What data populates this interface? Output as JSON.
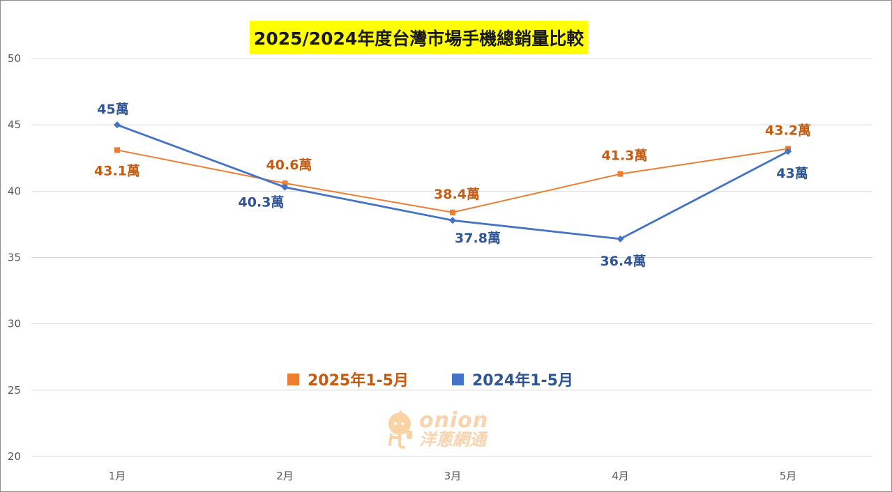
{
  "chart_data": {
    "type": "line",
    "title": "2025/2024年度台灣市場手機總銷量比較",
    "categories": [
      "1月",
      "2月",
      "3月",
      "4月",
      "5月"
    ],
    "y_ticks": [
      "20",
      "25",
      "30",
      "35",
      "40",
      "45",
      "50"
    ],
    "ylim": [
      20,
      50
    ],
    "grid": true,
    "legend_position": "middle-center",
    "series": [
      {
        "name": "2025年1-5月",
        "color": "#ed7d31",
        "label_color": "#c55a11",
        "marker": "square",
        "values": [
          43.1,
          40.6,
          38.4,
          41.3,
          43.2
        ],
        "labels": [
          "43.1萬",
          "40.6萬",
          "38.4萬",
          "41.3萬",
          "43.2萬"
        ]
      },
      {
        "name": "2024年1-5月",
        "color": "#4472c4",
        "label_color": "#2f5597",
        "marker": "diamond",
        "values": [
          45,
          40.3,
          37.8,
          36.4,
          43
        ],
        "labels": [
          "45萬",
          "40.3萬",
          "37.8萬",
          "36.4萬",
          "43萬"
        ]
      }
    ]
  },
  "watermark": {
    "brand": "onion",
    "brand_cn": "洋蔥網通"
  }
}
